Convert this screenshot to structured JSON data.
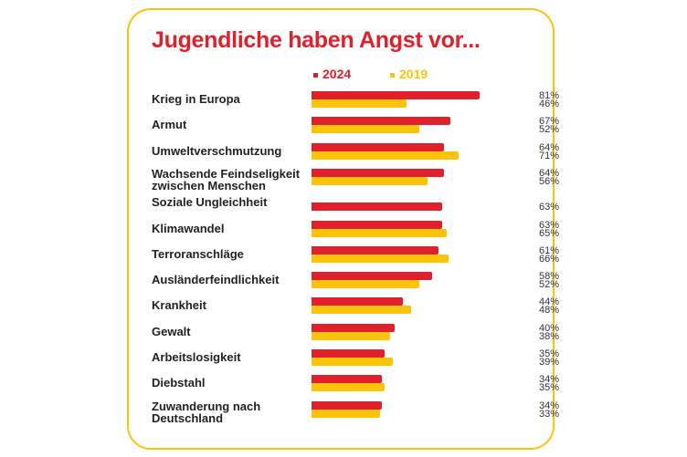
{
  "chart_data": {
    "type": "bar",
    "orientation": "horizontal",
    "title": "Jugendliche haben Angst vor...",
    "categories": [
      "Krieg in Europa",
      "Armut",
      "Umweltverschmutzung",
      "Wachsende Feindseligkeit zwischen Menschen",
      "Soziale Ungleichheit",
      "Klimawandel",
      "Terroranschläge",
      "Ausländerfeindlichkeit",
      "Krankheit",
      "Gewalt",
      "Arbeitslosigkeit",
      "Diebstahl",
      "Zuwanderung nach Deutschland"
    ],
    "category_lines": [
      [
        "Krieg in Europa"
      ],
      [
        "Armut"
      ],
      [
        "Umweltverschmutzung"
      ],
      [
        "Wachsende Feindseligkeit",
        "zwischen Menschen"
      ],
      [
        "Soziale Ungleichheit"
      ],
      [
        "Klimawandel"
      ],
      [
        "Terroranschläge"
      ],
      [
        "Ausländerfeindlichkeit"
      ],
      [
        "Krankheit"
      ],
      [
        "Gewalt"
      ],
      [
        "Arbeitslosigkeit"
      ],
      [
        "Diebstahl"
      ],
      [
        "Zuwanderung nach",
        "Deutschland"
      ]
    ],
    "series": [
      {
        "name": "2024",
        "color": "#e0202b",
        "values": [
          81,
          67,
          64,
          64,
          63,
          63,
          61,
          58,
          44,
          40,
          35,
          34,
          34
        ]
      },
      {
        "name": "2019",
        "color": "#fcc30b",
        "values": [
          46,
          52,
          71,
          56,
          null,
          65,
          66,
          52,
          48,
          38,
          39,
          35,
          33
        ]
      }
    ],
    "unit": "%",
    "legend": "top",
    "grid": false,
    "xlim": [
      0,
      85
    ]
  },
  "colors": {
    "frame": "#fcc30b",
    "title": "#e0202b"
  }
}
